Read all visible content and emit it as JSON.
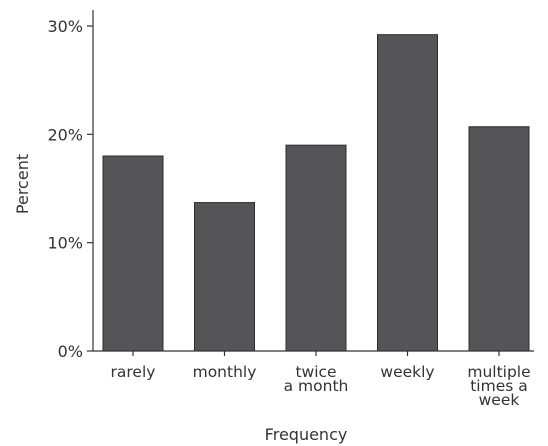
{
  "chart_data": {
    "type": "bar",
    "categories": [
      [
        "rarely"
      ],
      [
        "monthly"
      ],
      [
        "twice",
        "a month"
      ],
      [
        "weekly"
      ],
      [
        "multiple",
        "times a",
        "week"
      ]
    ],
    "values": [
      18,
      13.7,
      19,
      29.2,
      20.7
    ],
    "xlabel": "Frequency",
    "ylabel": "Percent",
    "ylim": [
      0,
      32
    ],
    "yticks": [
      0,
      10,
      20,
      30
    ],
    "ytick_labels": [
      "0%",
      "10%",
      "20%",
      "30%"
    ],
    "bar_color": "#555557",
    "grid": false,
    "legend": "none"
  }
}
